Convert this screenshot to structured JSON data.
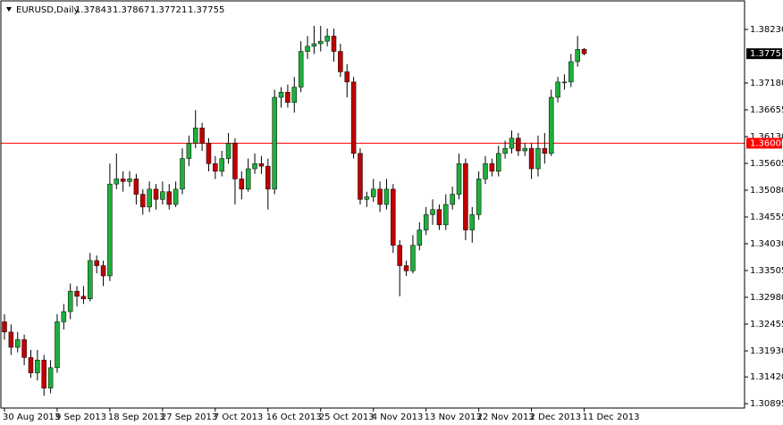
{
  "chart_data": {
    "type": "candlestick",
    "header": {
      "symbol": "EURUSD,Daily",
      "values": [
        1.37843,
        1.37867,
        1.37721,
        1.37755
      ]
    },
    "up_color": "#1fae3c",
    "down_color": "#c00000",
    "categories": [
      "30 Aug 2013",
      null,
      null,
      null,
      null,
      null,
      null,
      null,
      "9 Sep 2013",
      null,
      null,
      null,
      null,
      null,
      null,
      null,
      "18 Sep 2013",
      null,
      null,
      null,
      null,
      null,
      null,
      null,
      "27 Sep 2013",
      null,
      null,
      null,
      null,
      null,
      null,
      null,
      "7 Oct 2013",
      null,
      null,
      null,
      null,
      null,
      null,
      null,
      "16 Oct 2013",
      null,
      null,
      null,
      null,
      null,
      null,
      null,
      "25 Oct 2013",
      null,
      null,
      null,
      null,
      null,
      null,
      null,
      "4 Nov 2013",
      null,
      null,
      null,
      null,
      null,
      null,
      null,
      "13 Nov 2013",
      null,
      null,
      null,
      null,
      null,
      null,
      null,
      "22 Nov 2013",
      null,
      null,
      null,
      null,
      null,
      null,
      null,
      "2 Dec 2013",
      null,
      null,
      null,
      null,
      null,
      null,
      null,
      "11 Dec 2013"
    ],
    "open": [
      1.325,
      1.323,
      1.32,
      1.3215,
      1.318,
      1.315,
      1.3175,
      1.312,
      1.316,
      1.325,
      1.327,
      1.331,
      1.33,
      1.3295,
      1.337,
      1.336,
      1.334,
      1.352,
      1.353,
      1.3525,
      1.353,
      1.35,
      1.3475,
      1.351,
      1.349,
      1.3505,
      1.348,
      1.351,
      1.357,
      1.36,
      1.363,
      1.36,
      1.356,
      1.3545,
      1.357,
      1.36,
      1.353,
      1.351,
      1.355,
      1.356,
      1.3555,
      1.351,
      1.369,
      1.37,
      1.368,
      1.371,
      1.378,
      1.379,
      1.3795,
      1.38,
      1.381,
      1.378,
      1.374,
      1.372,
      1.358,
      1.349,
      1.3495,
      1.351,
      1.348,
      1.351,
      1.34,
      1.336,
      1.335,
      1.34,
      1.343,
      1.346,
      1.347,
      1.344,
      1.348,
      1.35,
      1.356,
      1.343,
      1.346,
      1.353,
      1.356,
      1.3545,
      1.358,
      1.359,
      1.361,
      1.3585,
      1.359,
      1.355,
      1.359,
      1.358,
      1.369,
      1.372,
      1.372,
      1.376,
      1.37843
    ],
    "high": [
      1.3265,
      1.3245,
      1.323,
      1.3225,
      1.3195,
      1.3195,
      1.3185,
      1.3175,
      1.3265,
      1.3285,
      1.3325,
      1.332,
      1.332,
      1.3385,
      1.338,
      1.337,
      1.356,
      1.358,
      1.3545,
      1.3545,
      1.354,
      1.351,
      1.3525,
      1.352,
      1.3525,
      1.352,
      1.3525,
      1.359,
      1.3615,
      1.3665,
      1.364,
      1.361,
      1.3575,
      1.3585,
      1.362,
      1.361,
      1.3545,
      1.357,
      1.358,
      1.3575,
      1.357,
      1.3705,
      1.371,
      1.3715,
      1.373,
      1.38,
      1.381,
      1.383,
      1.383,
      1.3825,
      1.3825,
      1.3795,
      1.3755,
      1.373,
      1.359,
      1.3505,
      1.353,
      1.3525,
      1.353,
      1.352,
      1.341,
      1.337,
      1.342,
      1.3445,
      1.3475,
      1.349,
      1.348,
      1.35,
      1.3515,
      1.358,
      1.357,
      1.3475,
      1.3545,
      1.3575,
      1.357,
      1.3595,
      1.3605,
      1.3625,
      1.362,
      1.36,
      1.36,
      1.3615,
      1.362,
      1.3705,
      1.373,
      1.3735,
      1.3775,
      1.381,
      1.37867
    ],
    "low": [
      1.3215,
      1.3185,
      1.319,
      1.3165,
      1.314,
      1.3135,
      1.3105,
      1.311,
      1.315,
      1.3235,
      1.3255,
      1.328,
      1.3285,
      1.329,
      1.3345,
      1.332,
      1.333,
      1.351,
      1.3505,
      1.3515,
      1.348,
      1.346,
      1.3465,
      1.347,
      1.348,
      1.347,
      1.3475,
      1.35,
      1.3555,
      1.359,
      1.3585,
      1.3545,
      1.353,
      1.3535,
      1.356,
      1.348,
      1.349,
      1.3505,
      1.354,
      1.354,
      1.347,
      1.35,
      1.367,
      1.367,
      1.366,
      1.37,
      1.3765,
      1.3775,
      1.378,
      1.379,
      1.376,
      1.373,
      1.369,
      1.357,
      1.348,
      1.3475,
      1.3485,
      1.3465,
      1.347,
      1.3385,
      1.33,
      1.334,
      1.3345,
      1.339,
      1.342,
      1.344,
      1.343,
      1.343,
      1.347,
      1.349,
      1.341,
      1.3405,
      1.345,
      1.352,
      1.3535,
      1.3535,
      1.357,
      1.358,
      1.3575,
      1.3575,
      1.353,
      1.3535,
      1.356,
      1.3575,
      1.368,
      1.3705,
      1.371,
      1.375,
      1.37721
    ],
    "close": [
      1.323,
      1.32,
      1.3215,
      1.318,
      1.315,
      1.3175,
      1.312,
      1.316,
      1.325,
      1.327,
      1.331,
      1.33,
      1.3295,
      1.337,
      1.336,
      1.334,
      1.352,
      1.353,
      1.3525,
      1.353,
      1.35,
      1.3475,
      1.351,
      1.349,
      1.3505,
      1.348,
      1.351,
      1.357,
      1.36,
      1.363,
      1.36,
      1.356,
      1.3545,
      1.357,
      1.36,
      1.353,
      1.351,
      1.355,
      1.356,
      1.3555,
      1.351,
      1.369,
      1.37,
      1.368,
      1.371,
      1.378,
      1.379,
      1.3795,
      1.38,
      1.381,
      1.378,
      1.374,
      1.372,
      1.358,
      1.349,
      1.3495,
      1.351,
      1.348,
      1.351,
      1.34,
      1.336,
      1.335,
      1.34,
      1.343,
      1.346,
      1.347,
      1.344,
      1.348,
      1.35,
      1.356,
      1.343,
      1.346,
      1.353,
      1.356,
      1.3545,
      1.358,
      1.359,
      1.361,
      1.3585,
      1.359,
      1.355,
      1.359,
      1.358,
      1.369,
      1.372,
      1.372,
      1.376,
      1.3784,
      1.37755
    ],
    "ylim": [
      1.3081,
      1.3879
    ],
    "yticks": [
      {
        "value": 1.3823,
        "label": "1.38230"
      },
      {
        "value": 1.3718,
        "label": "1.37180"
      },
      1.36655,
      {
        "value": 1.3613,
        "label": "1.36130"
      },
      1.35605,
      {
        "value": 1.3508,
        "label": "1.35080"
      },
      1.34555,
      {
        "value": 1.3403,
        "label": "1.34030"
      },
      1.33505,
      {
        "value": 1.3298,
        "label": "1.32980"
      },
      1.32455,
      {
        "value": 1.3193,
        "label": "1.31930"
      },
      {
        "value": 1.3142,
        "label": "1.31420"
      },
      1.30895
    ],
    "level": {
      "value": 1.36,
      "label": "1.36000",
      "color": "#ff0000"
    },
    "last_price": 1.37755
  }
}
